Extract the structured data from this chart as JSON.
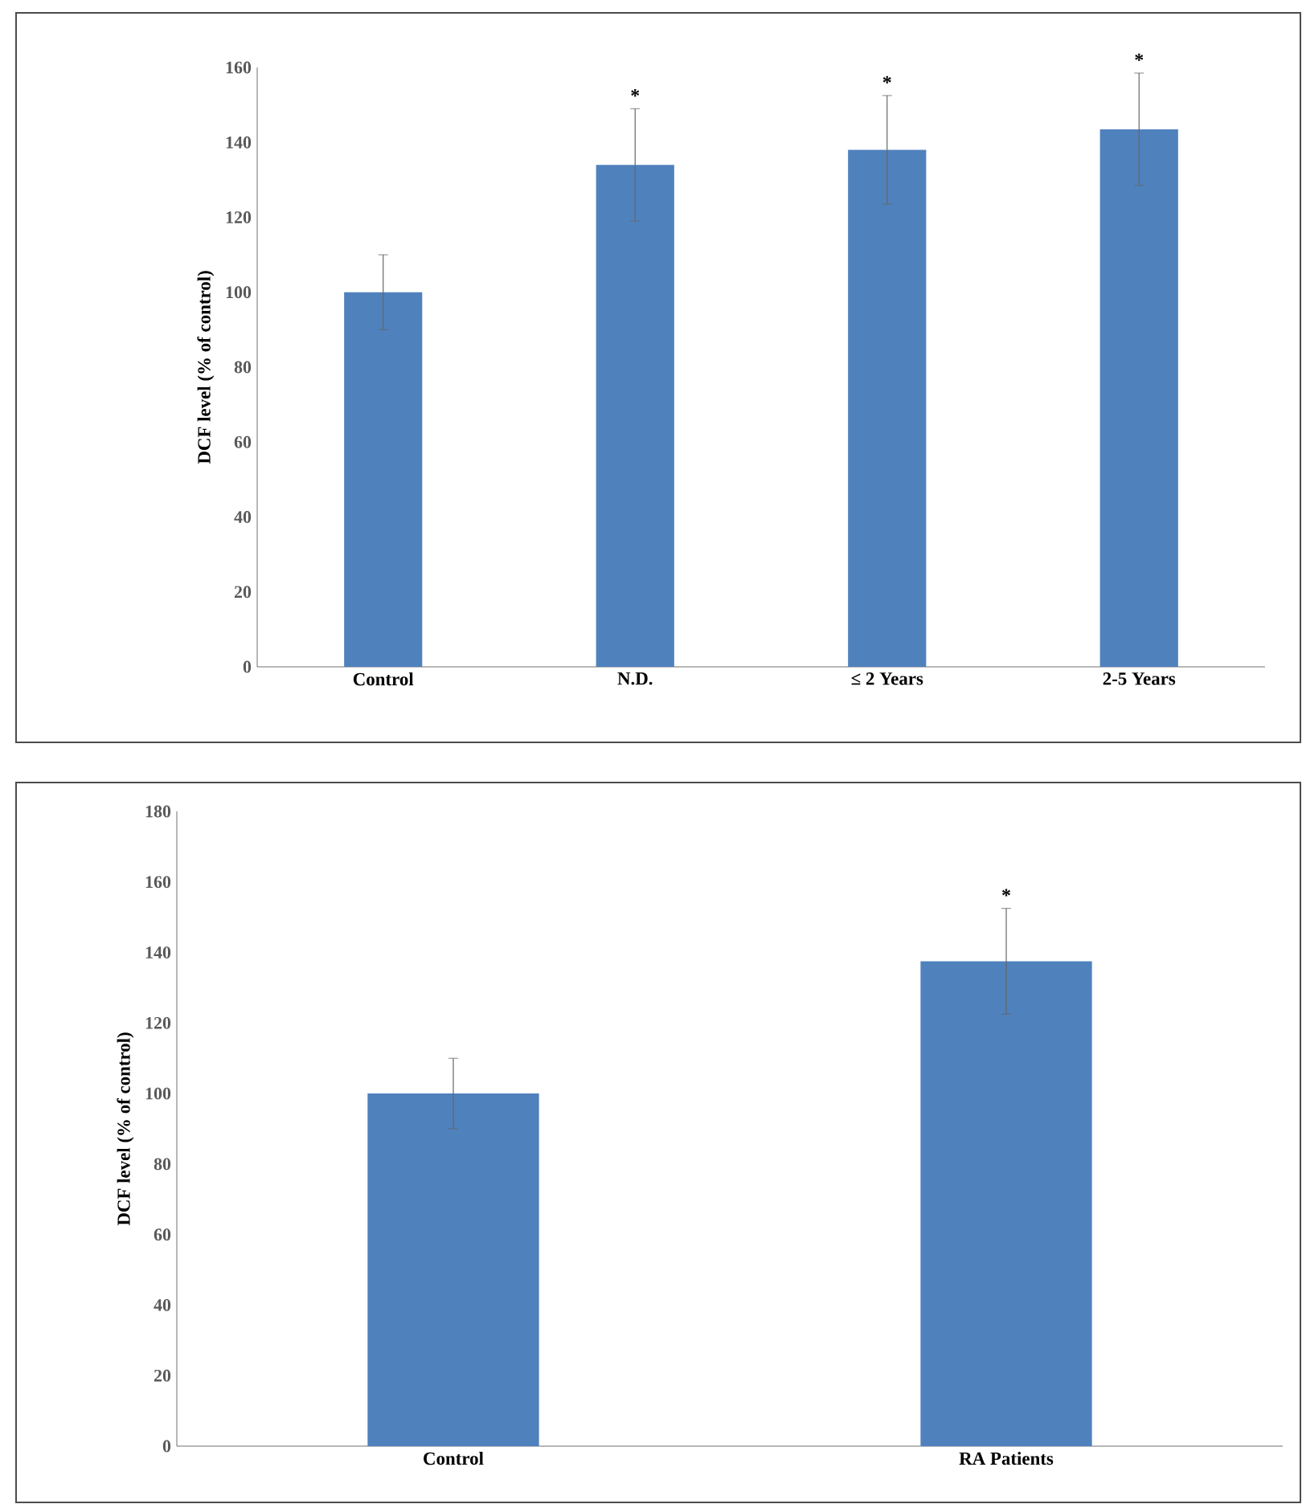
{
  "chart_data": [
    {
      "type": "bar",
      "ylabel": "DCF level (% of control)",
      "categories": [
        "Control",
        "N.D.",
        "≤ 2 Years",
        "2-5 Years"
      ],
      "values": [
        100,
        134,
        138,
        143.5
      ],
      "errors": [
        10,
        15,
        14.5,
        15
      ],
      "color": "#4f81bd",
      "ylim": [
        0,
        160
      ],
      "yticks": [
        0,
        20,
        40,
        60,
        80,
        100,
        120,
        140,
        160
      ],
      "annotations": [
        {
          "text": "*",
          "x": "N.D.",
          "y": 149
        },
        {
          "text": "*",
          "x": "≤ 2 Years",
          "y": 152.5
        },
        {
          "text": "*",
          "x": "2-5 Years",
          "y": 158.5
        }
      ]
    },
    {
      "type": "bar",
      "ylabel": "DCF level (% of control)",
      "categories": [
        "Control",
        "RA Patients"
      ],
      "values": [
        100,
        137.5
      ],
      "errors": [
        10,
        15
      ],
      "color": "#4f81bd",
      "ylim": [
        0,
        180
      ],
      "yticks": [
        0,
        20,
        40,
        60,
        80,
        100,
        120,
        140,
        160,
        180
      ],
      "annotations": [
        {
          "text": "*",
          "x": "RA Patients",
          "y": 152.5
        }
      ]
    }
  ]
}
